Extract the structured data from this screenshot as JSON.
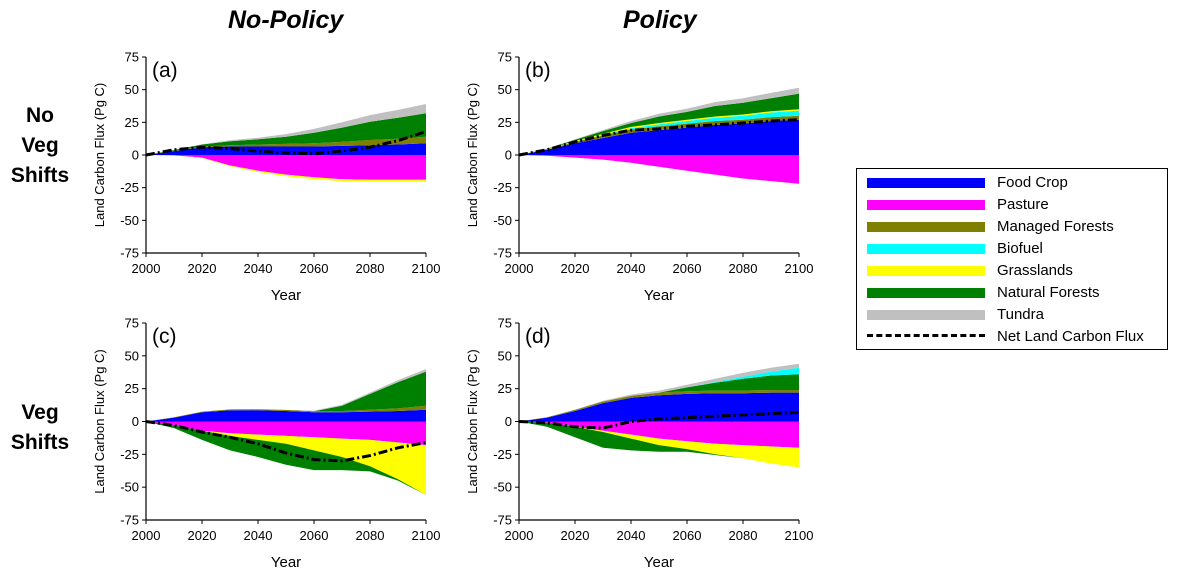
{
  "column_titles": [
    "No-Policy",
    "Policy"
  ],
  "row_titles": [
    [
      "No",
      "Veg",
      "Shifts"
    ],
    [
      "Veg",
      "Shifts"
    ]
  ],
  "colors": {
    "Food Crop": "#0000ff",
    "Pasture": "#ff00ff",
    "Managed Forests": "#808000",
    "Biofuel": "#00ffff",
    "Grasslands": "#ffff00",
    "Natural Forests": "#008000",
    "Tundra": "#c0c0c0",
    "Net Land Carbon Flux": "#000000"
  },
  "legend": [
    {
      "name": "Food Crop",
      "style": "fill"
    },
    {
      "name": "Pasture",
      "style": "fill"
    },
    {
      "name": "Managed Forests",
      "style": "fill"
    },
    {
      "name": "Biofuel",
      "style": "fill"
    },
    {
      "name": "Grasslands",
      "style": "fill"
    },
    {
      "name": "Natural Forests",
      "style": "fill"
    },
    {
      "name": "Tundra",
      "style": "fill"
    },
    {
      "name": "Net Land Carbon Flux",
      "style": "dash-dot line"
    }
  ],
  "chart_data": [
    {
      "type": "area",
      "panel_label": "(a)",
      "xlabel": "Year",
      "ylabel": "Land Carbon Flux (Pg C)",
      "xlim": [
        2000,
        2100
      ],
      "ylim": [
        -75,
        75
      ],
      "xticks": [
        2000,
        2020,
        2040,
        2060,
        2080,
        2100
      ],
      "yticks": [
        -75,
        -50,
        -25,
        0,
        25,
        50,
        75
      ],
      "x": [
        2000,
        2010,
        2020,
        2030,
        2040,
        2050,
        2060,
        2070,
        2080,
        2090,
        2100
      ],
      "series": [
        {
          "name": "Food Crop",
          "values": [
            0,
            3,
            6,
            6.5,
            6.5,
            6.5,
            6.5,
            7,
            7.5,
            8,
            9
          ]
        },
        {
          "name": "Managed Forests",
          "values": [
            0,
            0.3,
            0.5,
            1,
            1.5,
            2,
            2.5,
            3,
            4,
            4.5,
            5
          ]
        },
        {
          "name": "Biofuel",
          "values": [
            0,
            0,
            0,
            0,
            0,
            0,
            0,
            0,
            0,
            0,
            0
          ]
        },
        {
          "name": "Natural Forests",
          "values": [
            0,
            0.5,
            1.5,
            3,
            4,
            5.5,
            8,
            11,
            14,
            16,
            18
          ]
        },
        {
          "name": "Tundra",
          "values": [
            0,
            0,
            0.3,
            0.8,
            1.2,
            2,
            3,
            4,
            5,
            6,
            7
          ]
        },
        {
          "name": "Pasture",
          "values": [
            0,
            -0.3,
            -2,
            -8,
            -12,
            -15,
            -17,
            -18.5,
            -19,
            -19,
            -19
          ]
        },
        {
          "name": "Grasslands",
          "values": [
            0,
            0,
            -0.3,
            -0.6,
            -1,
            -1.2,
            -1.5,
            -1.5,
            -1.5,
            -1.5,
            -1.5
          ]
        },
        {
          "name": "Net Land Carbon Flux",
          "values": [
            0,
            4,
            6,
            5,
            3,
            1.5,
            1,
            3,
            6,
            11,
            18
          ]
        }
      ]
    },
    {
      "type": "area",
      "panel_label": "(b)",
      "xlabel": "Year",
      "ylabel": "Land Carbon Flux (Pg C)",
      "xlim": [
        2000,
        2100
      ],
      "ylim": [
        -75,
        75
      ],
      "xticks": [
        2000,
        2020,
        2040,
        2060,
        2080,
        2100
      ],
      "yticks": [
        -75,
        -50,
        -25,
        0,
        25,
        50,
        75
      ],
      "x": [
        2000,
        2010,
        2020,
        2030,
        2040,
        2050,
        2060,
        2070,
        2080,
        2090,
        2100
      ],
      "series": [
        {
          "name": "Food Crop",
          "values": [
            0,
            4,
            9,
            13,
            17,
            19,
            21,
            23,
            24,
            26,
            27
          ]
        },
        {
          "name": "Managed Forests",
          "values": [
            0,
            0.3,
            1,
            2,
            2.5,
            3,
            3,
            3,
            3,
            3,
            3
          ]
        },
        {
          "name": "Biofuel",
          "values": [
            0,
            0,
            0.2,
            0.5,
            1,
            1.5,
            2,
            2.5,
            3,
            3.5,
            4
          ]
        },
        {
          "name": "Grasslands",
          "values": [
            0,
            0.2,
            0.5,
            0.8,
            1,
            1,
            1,
            1,
            1,
            1,
            1
          ]
        },
        {
          "name": "Natural Forests",
          "values": [
            0,
            0.3,
            1,
            2,
            3,
            5,
            6,
            8,
            9,
            10,
            12
          ]
        },
        {
          "name": "Tundra",
          "values": [
            0,
            0,
            0.3,
            0.8,
            1.5,
            2,
            2.5,
            3,
            3.5,
            4,
            4.5
          ]
        },
        {
          "name": "Pasture",
          "values": [
            0,
            -0.5,
            -2,
            -3.5,
            -6,
            -9,
            -12,
            -15,
            -18,
            -20,
            -22
          ]
        },
        {
          "name": "Net Land Carbon Flux",
          "values": [
            0,
            4,
            10,
            15,
            19,
            20,
            22,
            23,
            24.5,
            26,
            27
          ]
        }
      ]
    },
    {
      "type": "area",
      "panel_label": "(c)",
      "xlabel": "Year",
      "ylabel": "Land Carbon Flux (Pg C)",
      "xlim": [
        2000,
        2100
      ],
      "ylim": [
        -75,
        75
      ],
      "xticks": [
        2000,
        2020,
        2040,
        2060,
        2080,
        2100
      ],
      "yticks": [
        -75,
        -50,
        -25,
        0,
        25,
        50,
        75
      ],
      "x": [
        2000,
        2010,
        2020,
        2030,
        2040,
        2050,
        2060,
        2070,
        2080,
        2090,
        2100
      ],
      "series": [
        {
          "name": "Food Crop",
          "values": [
            0,
            3,
            7,
            8.5,
            8.5,
            8,
            7,
            7,
            7.5,
            8,
            9
          ]
        },
        {
          "name": "Managed Forests",
          "values": [
            0,
            0.3,
            0.5,
            0.7,
            0.8,
            0.8,
            0.8,
            1,
            1.5,
            2,
            3
          ]
        },
        {
          "name": "Natural Forests",
          "values": [
            0,
            0,
            0,
            0,
            0,
            0,
            0,
            4,
            12,
            20,
            26
          ]
        },
        {
          "name": "Tundra",
          "values": [
            0,
            0,
            0,
            0,
            0,
            0,
            0.5,
            0.8,
            1,
            1.5,
            2
          ]
        },
        {
          "name": "Pasture",
          "values": [
            0,
            -3,
            -7,
            -9,
            -10,
            -11,
            -12,
            -13,
            -14,
            -16,
            -18
          ]
        },
        {
          "name": "Grasslands",
          "values": [
            0,
            0,
            0,
            -2,
            -4,
            -6,
            -10,
            -14,
            -20,
            -28,
            -38
          ]
        },
        {
          "name": "Natural Forests (loss)",
          "values": [
            0,
            -2,
            -7,
            -11,
            -13,
            -16,
            -15,
            -10,
            -4,
            -1,
            0
          ]
        },
        {
          "name": "Net Land Carbon Flux",
          "values": [
            0,
            -3,
            -8,
            -12,
            -17,
            -24,
            -29,
            -30,
            -26,
            -20,
            -16
          ]
        }
      ]
    },
    {
      "type": "area",
      "panel_label": "(d)",
      "xlabel": "Year",
      "ylabel": "Land Carbon Flux (Pg C)",
      "xlim": [
        2000,
        2100
      ],
      "ylim": [
        -75,
        75
      ],
      "xticks": [
        2000,
        2020,
        2040,
        2060,
        2080,
        2100
      ],
      "yticks": [
        -75,
        -50,
        -25,
        0,
        25,
        50,
        75
      ],
      "x": [
        2000,
        2010,
        2020,
        2030,
        2040,
        2050,
        2060,
        2070,
        2080,
        2090,
        2100
      ],
      "series": [
        {
          "name": "Food Crop",
          "values": [
            0,
            3,
            8,
            14,
            18,
            20,
            21,
            21.5,
            21.5,
            22,
            22
          ]
        },
        {
          "name": "Managed Forests",
          "values": [
            0,
            0.3,
            0.8,
            1.2,
            1.5,
            2,
            2,
            2,
            2,
            2,
            2
          ]
        },
        {
          "name": "Natural Forests",
          "values": [
            0,
            0,
            0,
            0,
            0,
            0,
            3,
            6,
            9,
            11,
            12
          ]
        },
        {
          "name": "Biofuel",
          "values": [
            0,
            0,
            0,
            0,
            0,
            0,
            0,
            0.5,
            1.5,
            3,
            5
          ]
        },
        {
          "name": "Tundra",
          "values": [
            0,
            0,
            0.3,
            0.6,
            1,
            1.5,
            2,
            2.5,
            3,
            3,
            3
          ]
        },
        {
          "name": "Pasture",
          "values": [
            0,
            -1,
            -4,
            -7,
            -10,
            -13,
            -15,
            -17,
            -18,
            -19,
            -20
          ]
        },
        {
          "name": "Grasslands",
          "values": [
            0,
            0,
            0,
            -1,
            -3,
            -5,
            -6,
            -8,
            -10,
            -13,
            -15
          ]
        },
        {
          "name": "Natural Forests (loss)",
          "values": [
            0,
            -3,
            -8,
            -12,
            -9,
            -5,
            -2,
            -0.5,
            0,
            0,
            0
          ]
        },
        {
          "name": "Net Land Carbon Flux",
          "values": [
            0,
            -1,
            -4,
            -5,
            0,
            2,
            3,
            4,
            5,
            6,
            7
          ]
        }
      ]
    }
  ]
}
